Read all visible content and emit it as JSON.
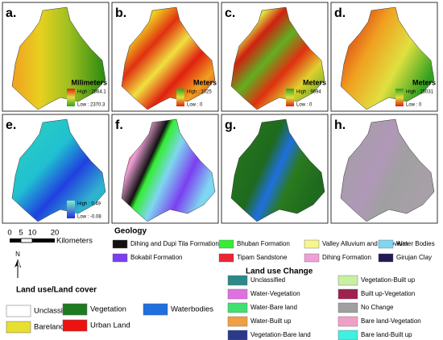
{
  "panels": [
    {
      "label": "a.",
      "unit": "Milimeters",
      "high": "High : 2864.1",
      "low": "Low : 2370.3"
    },
    {
      "label": "b.",
      "unit": "Meters",
      "high": "High : 1025",
      "low": "Low : 0"
    },
    {
      "label": "c.",
      "unit": "Meters",
      "high": "High : 9694",
      "low": "Low : 0"
    },
    {
      "label": "d.",
      "unit": "Meters",
      "high": "High : 15031",
      "low": "Low : 0"
    },
    {
      "label": "e.",
      "high": "High : 0.49",
      "low": "Low : -0.08"
    },
    {
      "label": "f."
    },
    {
      "label": "g."
    },
    {
      "label": "h."
    }
  ],
  "scale": {
    "ticks": [
      "0",
      "5",
      "10",
      "20"
    ],
    "unit": "Kilometers"
  },
  "north": "N",
  "geology": {
    "title": "Geology",
    "items": [
      {
        "name": "Dihing and Dupi Tila Formation",
        "color": "#111111"
      },
      {
        "name": "Bhuban Formation",
        "color": "#33ee33"
      },
      {
        "name": "Valley Alluvium and Collovium",
        "color": "#f6f68a"
      },
      {
        "name": "Water Bodies",
        "color": "#7fd6f0"
      },
      {
        "name": "Bokabil Formation",
        "color": "#7b3ff0"
      },
      {
        "name": "Tipam Sandstone",
        "color": "#ee2233"
      },
      {
        "name": "Dihing Formation",
        "color": "#f0a0d8"
      },
      {
        "name": "Girujan Clay",
        "color": "#221a55"
      }
    ]
  },
  "landcover": {
    "title": "Land use/Land cover",
    "items": [
      {
        "name": "Unclassified",
        "color": "#ffffff"
      },
      {
        "name": "Vegetation",
        "color": "#1e7a1e"
      },
      {
        "name": "Waterbodies",
        "color": "#1f6fe0"
      },
      {
        "name": "Bareland",
        "color": "#e8e030"
      },
      {
        "name": "Urban Land",
        "color": "#ee1111"
      }
    ]
  },
  "change": {
    "title": "Land use Change",
    "items": [
      {
        "name": "Unclassified",
        "color": "#2a8a8a"
      },
      {
        "name": "Water-Vegetation",
        "color": "#e070e0"
      },
      {
        "name": "Water-Bare land",
        "color": "#40e070"
      },
      {
        "name": "Water-Built up",
        "color": "#f0a040"
      },
      {
        "name": "Vegetation-Bare land",
        "color": "#2a3a8a"
      },
      {
        "name": "Vegetation-Built up",
        "color": "#c8f0a0"
      },
      {
        "name": "Built up-Vegetation",
        "color": "#a02050"
      },
      {
        "name": "No Change",
        "color": "#a0a0a0"
      },
      {
        "name": "Bare land-Vegetation",
        "color": "#f0a0c8"
      },
      {
        "name": "Bare land-Built up",
        "color": "#40f0e0"
      }
    ]
  }
}
